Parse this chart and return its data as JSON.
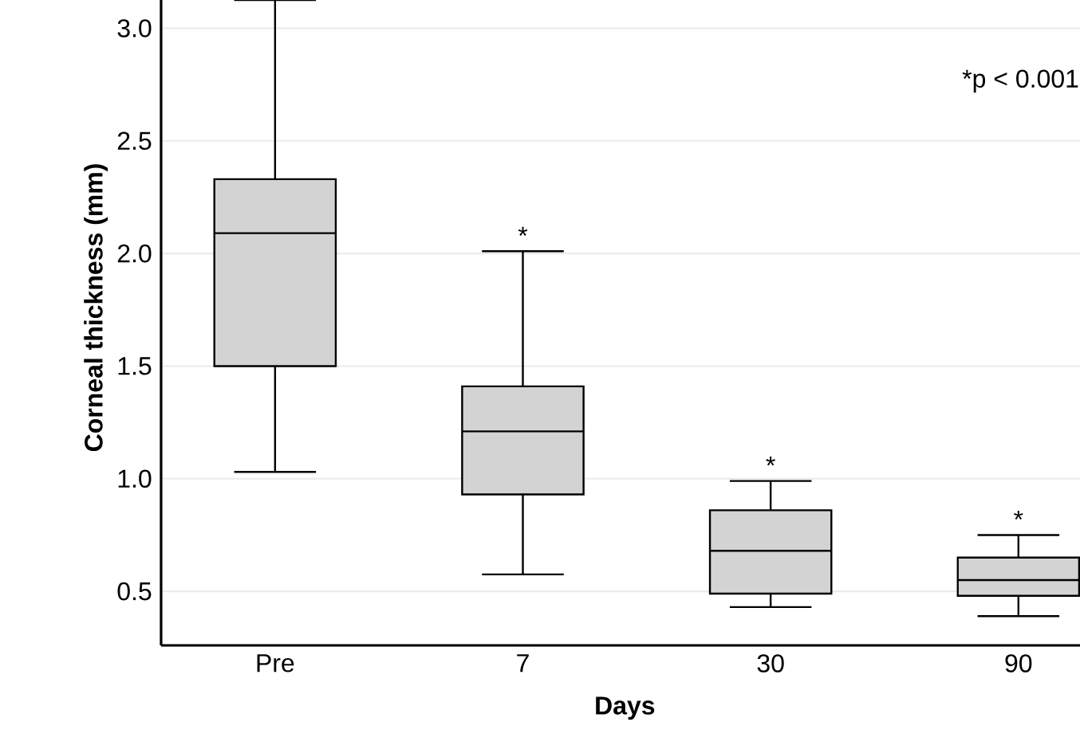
{
  "chart_data": {
    "type": "box",
    "xlabel": "Days",
    "ylabel": "Corneal thickness (mm)",
    "categories": [
      "Pre",
      "7",
      "30",
      "90"
    ],
    "color": "#d3d3d3",
    "boxes": [
      {
        "low": 1.03,
        "q1": 1.5,
        "median": 2.09,
        "q3": 2.33,
        "high": 3.125
      },
      {
        "low": 0.575,
        "q1": 0.93,
        "median": 1.21,
        "q3": 1.41,
        "high": 2.01
      },
      {
        "low": 0.43,
        "q1": 0.49,
        "median": 0.68,
        "q3": 0.86,
        "high": 0.99
      },
      {
        "low": 0.39,
        "q1": 0.48,
        "median": 0.55,
        "q3": 0.65,
        "high": 0.75
      }
    ],
    "ylim": [
      0.26,
      3.26
    ],
    "yticks": [
      {
        "value": 0.5,
        "label": "0.5"
      },
      {
        "value": 1,
        "label": "1.0"
      },
      {
        "value": 1.5,
        "label": "1.5"
      },
      {
        "value": 2,
        "label": "2.0"
      },
      {
        "value": 2.5,
        "label": "2.5"
      },
      {
        "value": 3,
        "label": "3.0"
      }
    ],
    "grid": "y",
    "annotations": [
      {
        "text": "*",
        "x": "7",
        "y": 2.01
      },
      {
        "text": "*",
        "x": "30",
        "y": 0.99
      },
      {
        "text": "*",
        "x": "90",
        "y": 0.75
      },
      "*p < 0.001"
    ]
  }
}
